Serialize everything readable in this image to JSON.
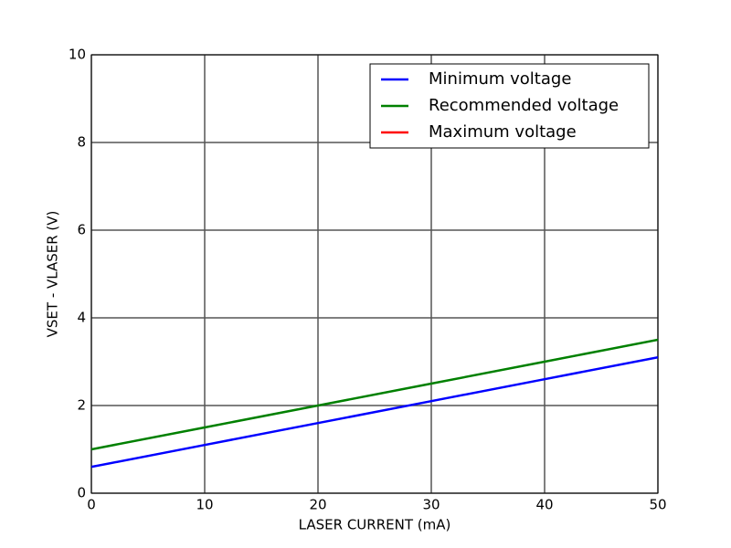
{
  "chart_data": {
    "type": "line",
    "x_label": "LASER CURRENT (mA)",
    "y_label": "VSET - VLASER (V)",
    "x": [
      0,
      10,
      20,
      30,
      40,
      50
    ],
    "series": [
      {
        "name": "Minimum voltage",
        "color": "#0000ff",
        "values": [
          0.6,
          1.1,
          1.6,
          2.1,
          2.6,
          3.1
        ]
      },
      {
        "name": "Recommended voltage",
        "color": "#008000",
        "values": [
          1.0,
          1.5,
          2.0,
          2.5,
          3.0,
          3.5
        ]
      },
      {
        "name": "Maximum voltage",
        "color": "#ff0000",
        "values": [
          null,
          null,
          null,
          null,
          null,
          null
        ]
      }
    ],
    "xlim": [
      0,
      50
    ],
    "xticks": [
      0,
      10,
      20,
      30,
      40,
      50
    ],
    "ylim": [
      0,
      10
    ],
    "yticks": [
      0,
      2,
      4,
      6,
      8,
      10
    ],
    "grid": true,
    "legend": "upper right"
  }
}
